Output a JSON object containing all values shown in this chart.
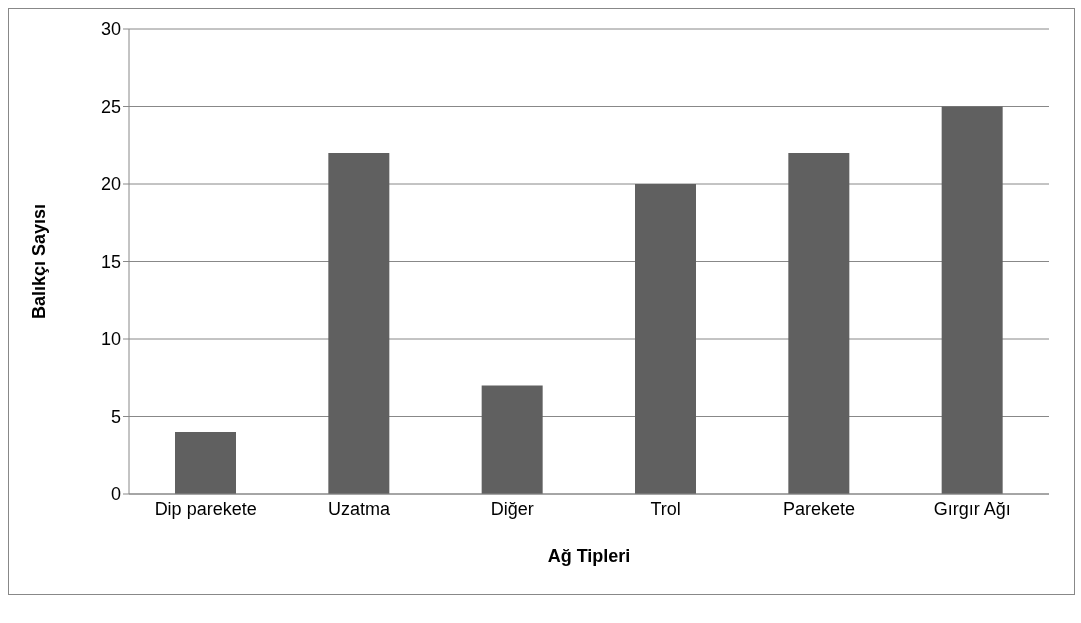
{
  "chart_data": {
    "type": "bar",
    "xlabel": "Ağ Tipleri",
    "ylabel": "Balıkçı Sayısı",
    "categories": [
      "Dip parekete",
      "Uzatma",
      "Diğer",
      "Trol",
      "Parekete",
      "Gırgır Ağı"
    ],
    "values": [
      4,
      22,
      7,
      20,
      22,
      25
    ],
    "color": "#606060",
    "ylim": [
      0,
      30
    ],
    "yticks": [
      0,
      5,
      10,
      15,
      20,
      25,
      30
    ],
    "grid": "y",
    "legend": false
  }
}
